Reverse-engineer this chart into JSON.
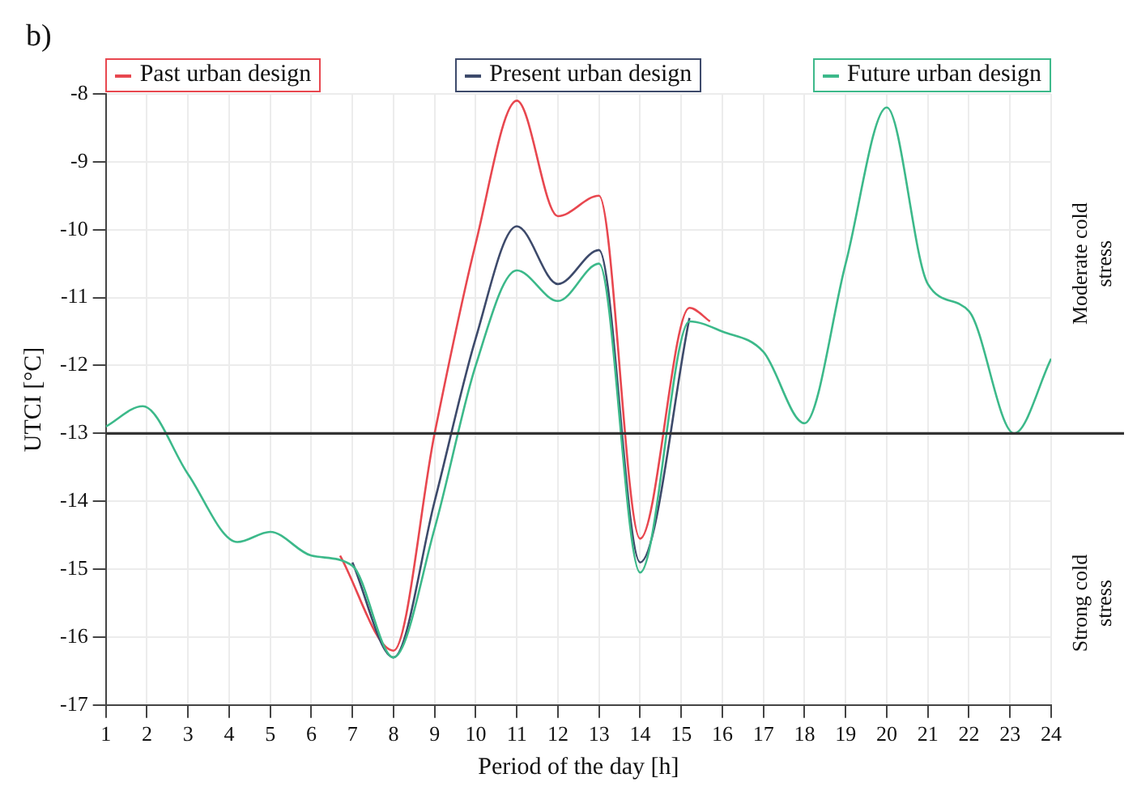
{
  "chart_data": {
    "type": "line",
    "xlabel": "Period of the day [h]",
    "ylabel": "UTCI [°C]",
    "annotations": [
      "b)",
      "Moderate cold stress",
      "Strong cold stress"
    ],
    "xlim": [
      1,
      24
    ],
    "xticks": [
      1,
      2,
      3,
      4,
      5,
      6,
      7,
      8,
      9,
      10,
      11,
      12,
      13,
      14,
      15,
      16,
      17,
      18,
      19,
      20,
      21,
      22,
      23,
      24
    ],
    "ylim": [
      -17,
      -8
    ],
    "yticks": [
      -17,
      -16,
      -15,
      -14,
      -13,
      -12,
      -11,
      -10,
      -9,
      -8
    ],
    "grid": true,
    "legend": "top",
    "marker": "none",
    "line_style": "solid",
    "ref_lines": [
      {
        "axis": "y",
        "value": -13,
        "color": "#333333"
      }
    ],
    "series": [
      {
        "name": "Past urban design",
        "color": "#e8474f",
        "x": [
          6.7,
          8,
          9,
          10,
          11,
          12,
          13,
          14,
          15.2,
          15.7
        ],
        "values": [
          -14.8,
          -16.2,
          -13.0,
          -10.2,
          -8.1,
          -9.8,
          -9.5,
          -14.55,
          -11.15,
          -11.35
        ]
      },
      {
        "name": "Present urban design",
        "color": "#3d4a6b",
        "x": [
          7,
          8,
          9,
          10,
          11,
          12,
          13,
          14,
          15.2
        ],
        "values": [
          -14.9,
          -16.3,
          -14.0,
          -11.6,
          -9.95,
          -10.8,
          -10.3,
          -14.9,
          -11.3
        ]
      },
      {
        "name": "Future urban design",
        "color": "#3cb98a",
        "x": [
          1,
          1.9,
          3,
          4.2,
          5,
          6,
          7,
          8,
          9,
          10,
          11,
          12,
          13,
          14,
          15.2,
          16,
          17,
          18,
          19,
          20,
          21,
          22,
          23.1,
          24
        ],
        "values": [
          -12.9,
          -12.6,
          -13.6,
          -14.6,
          -14.45,
          -14.8,
          -14.95,
          -16.3,
          -14.4,
          -12.0,
          -10.6,
          -11.05,
          -10.5,
          -15.05,
          -11.35,
          -11.5,
          -11.8,
          -12.85,
          -10.5,
          -8.2,
          -10.8,
          -11.2,
          -13.0,
          -11.9
        ]
      }
    ]
  }
}
